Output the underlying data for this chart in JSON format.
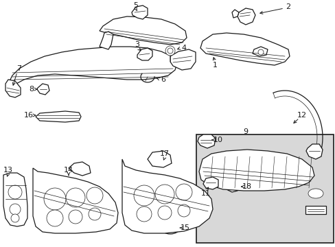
{
  "bg_color": "#ffffff",
  "line_color": "#1a1a1a",
  "box_bg": "#e0e0e0",
  "figsize": [
    4.89,
    3.6
  ],
  "dpi": 100
}
